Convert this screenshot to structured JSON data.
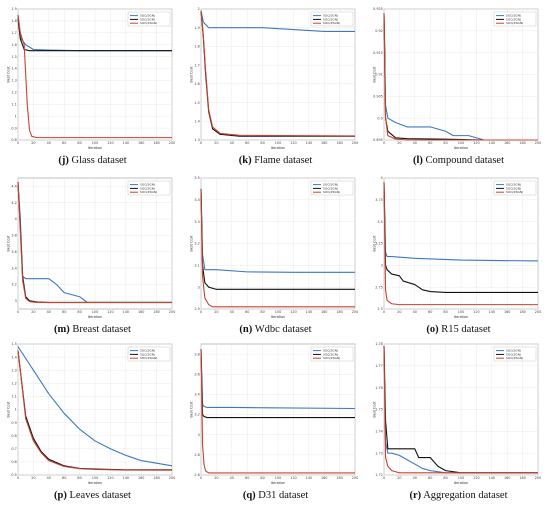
{
  "colors": {
    "series1": "#3a78c4",
    "series2": "#111111",
    "series3": "#c8432d"
  },
  "common": {
    "xlabel": "Iteration",
    "ylabel": "Best Cost",
    "legend": [
      "SOC(SGN)",
      "SOC(SGN)",
      "SOC(ZSGN)"
    ],
    "legend_position": "top-right",
    "grid": true,
    "xticks": [
      0,
      20,
      40,
      60,
      80,
      100,
      120,
      140,
      160,
      180,
      200
    ],
    "xlim": [
      0,
      200
    ]
  },
  "panels": [
    {
      "id": "j",
      "letter": "(j)",
      "title": "Glass dataset"
    },
    {
      "id": "k",
      "letter": "(k)",
      "title": "Flame dataset"
    },
    {
      "id": "l",
      "letter": "(l)",
      "title": "Compound dataset"
    },
    {
      "id": "m",
      "letter": "(m)",
      "title": "Breast dataset"
    },
    {
      "id": "n",
      "letter": "(n)",
      "title": "Wdbc dataset"
    },
    {
      "id": "o",
      "letter": "(o)",
      "title": "R15 dataset"
    },
    {
      "id": "p",
      "letter": "(p)",
      "title": "Leaves dataset"
    },
    {
      "id": "q",
      "letter": "(q)",
      "title": "D31 dataset"
    },
    {
      "id": "r",
      "letter": "(r)",
      "title": "Aggregation dataset"
    }
  ],
  "chart_data": [
    {
      "panel": "j",
      "type": "line",
      "ylim": [
        0.8,
        1.9
      ],
      "yticks": [
        0.8,
        0.9,
        1,
        1.1,
        1.2,
        1.3,
        1.4,
        1.5,
        1.6,
        1.7,
        1.8,
        1.9
      ],
      "series": [
        {
          "color_key": "series1",
          "x": [
            0,
            3,
            10,
            20,
            40,
            80,
            200
          ],
          "y": [
            1.85,
            1.66,
            1.6,
            1.56,
            1.555,
            1.55,
            1.55
          ]
        },
        {
          "color_key": "series2",
          "x": [
            0,
            3,
            8,
            15,
            200
          ],
          "y": [
            1.82,
            1.65,
            1.56,
            1.55,
            1.55
          ]
        },
        {
          "color_key": "series3",
          "x": [
            0,
            3,
            8,
            12,
            15,
            18,
            25,
            200
          ],
          "y": [
            1.85,
            1.7,
            1.6,
            1.1,
            0.88,
            0.83,
            0.82,
            0.82
          ]
        }
      ]
    },
    {
      "panel": "k",
      "type": "line",
      "ylim": [
        1.3,
        2.0
      ],
      "yticks": [
        1.3,
        1.4,
        1.5,
        1.6,
        1.7,
        1.8,
        1.9,
        2.0
      ],
      "series": [
        {
          "color_key": "series1",
          "x": [
            0,
            3,
            10,
            40,
            80,
            120,
            160,
            200
          ],
          "y": [
            1.99,
            1.93,
            1.9,
            1.9,
            1.9,
            1.89,
            1.88,
            1.88
          ]
        },
        {
          "color_key": "series2",
          "x": [
            0,
            3,
            6,
            10,
            15,
            25,
            50,
            200
          ],
          "y": [
            1.99,
            1.85,
            1.65,
            1.45,
            1.36,
            1.33,
            1.32,
            1.32
          ]
        },
        {
          "color_key": "series3",
          "x": [
            0,
            3,
            6,
            10,
            15,
            25,
            50,
            200
          ],
          "y": [
            1.99,
            1.86,
            1.67,
            1.46,
            1.37,
            1.335,
            1.325,
            1.322
          ]
        }
      ]
    },
    {
      "panel": "l",
      "type": "line",
      "ylim": [
        0.895,
        0.925
      ],
      "yticks": [
        0.895,
        0.9,
        0.905,
        0.91,
        0.915,
        0.92,
        0.925
      ],
      "series": [
        {
          "color_key": "series1",
          "x": [
            0,
            1,
            2,
            5,
            15,
            30,
            60,
            80,
            90,
            110,
            130,
            200
          ],
          "y": [
            0.923,
            0.91,
            0.903,
            0.9,
            0.899,
            0.898,
            0.898,
            0.897,
            0.896,
            0.896,
            0.895,
            0.895
          ]
        },
        {
          "color_key": "series2",
          "x": [
            0,
            1,
            2,
            5,
            15,
            30,
            80,
            130,
            200
          ],
          "y": [
            0.924,
            0.915,
            0.9,
            0.897,
            0.8955,
            0.8953,
            0.8952,
            0.895,
            0.895
          ]
        },
        {
          "color_key": "series3",
          "x": [
            0,
            1,
            2,
            5,
            15,
            30,
            200
          ],
          "y": [
            0.924,
            0.913,
            0.9,
            0.896,
            0.8952,
            0.895,
            0.895
          ]
        }
      ]
    },
    {
      "panel": "m",
      "type": "line",
      "ylim": [
        2.9,
        4.5
      ],
      "yticks": [
        3,
        3.2,
        3.4,
        3.6,
        3.8,
        4,
        4.2,
        4.4
      ],
      "series": [
        {
          "color_key": "series1",
          "x": [
            0,
            3,
            6,
            10,
            40,
            50,
            60,
            80,
            90,
            200
          ],
          "y": [
            4.45,
            4.0,
            3.3,
            3.27,
            3.27,
            3.2,
            3.1,
            3.05,
            2.98,
            2.98
          ]
        },
        {
          "color_key": "series2",
          "x": [
            0,
            3,
            6,
            10,
            15,
            25,
            40,
            200
          ],
          "y": [
            4.45,
            3.9,
            3.3,
            3.05,
            3.0,
            2.985,
            2.98,
            2.98
          ]
        },
        {
          "color_key": "series3",
          "x": [
            0,
            3,
            6,
            10,
            15,
            25,
            40,
            200
          ],
          "y": [
            4.45,
            3.85,
            3.25,
            3.03,
            2.99,
            2.98,
            2.978,
            2.978
          ]
        }
      ]
    },
    {
      "panel": "n",
      "type": "line",
      "ylim": [
        2.9,
        3.5
      ],
      "yticks": [
        2.9,
        3.0,
        3.1,
        3.2,
        3.3,
        3.4,
        3.5
      ],
      "series": [
        {
          "color_key": "series1",
          "x": [
            0,
            2,
            5,
            20,
            60,
            120,
            200
          ],
          "y": [
            3.45,
            3.15,
            3.08,
            3.08,
            3.07,
            3.068,
            3.068
          ]
        },
        {
          "color_key": "series2",
          "x": [
            0,
            2,
            5,
            10,
            20,
            200
          ],
          "y": [
            3.45,
            3.1,
            3.02,
            3.0,
            2.99,
            2.99
          ]
        },
        {
          "color_key": "series3",
          "x": [
            0,
            2,
            5,
            10,
            15,
            200
          ],
          "y": [
            3.45,
            3.05,
            2.95,
            2.92,
            2.91,
            2.91
          ]
        }
      ]
    },
    {
      "panel": "o",
      "type": "line",
      "ylim": [
        2.5,
        4.0
      ],
      "yticks": [
        2.5,
        2.75,
        3,
        3.25,
        3.5,
        3.75,
        4
      ],
      "series": [
        {
          "color_key": "series1",
          "x": [
            0,
            2,
            4,
            10,
            40,
            100,
            200
          ],
          "y": [
            3.95,
            3.15,
            3.1,
            3.1,
            3.08,
            3.06,
            3.05
          ]
        },
        {
          "color_key": "series2",
          "x": [
            0,
            2,
            4,
            10,
            20,
            25,
            40,
            50,
            60,
            80,
            200
          ],
          "y": [
            3.95,
            3.0,
            2.95,
            2.9,
            2.88,
            2.82,
            2.78,
            2.72,
            2.7,
            2.69,
            2.69
          ]
        },
        {
          "color_key": "series3",
          "x": [
            0,
            2,
            4,
            10,
            20,
            200
          ],
          "y": [
            3.95,
            2.72,
            2.6,
            2.56,
            2.55,
            2.55
          ]
        }
      ]
    },
    {
      "panel": "p",
      "type": "line",
      "ylim": [
        0.5,
        1.5
      ],
      "yticks": [
        0.5,
        0.6,
        0.7,
        0.8,
        0.9,
        1,
        1.1,
        1.2,
        1.3,
        1.4,
        1.5
      ],
      "series": [
        {
          "color_key": "series1",
          "x": [
            0,
            20,
            40,
            60,
            80,
            100,
            120,
            140,
            160,
            180,
            200
          ],
          "y": [
            1.48,
            1.3,
            1.12,
            0.97,
            0.85,
            0.76,
            0.7,
            0.65,
            0.61,
            0.59,
            0.57
          ]
        },
        {
          "color_key": "series2",
          "x": [
            0,
            10,
            20,
            30,
            40,
            60,
            80,
            100,
            140,
            200
          ],
          "y": [
            1.45,
            0.95,
            0.78,
            0.68,
            0.62,
            0.57,
            0.55,
            0.545,
            0.54,
            0.54
          ]
        },
        {
          "color_key": "series3",
          "x": [
            0,
            10,
            20,
            30,
            40,
            60,
            80,
            100,
            140,
            200
          ],
          "y": [
            1.45,
            0.93,
            0.76,
            0.67,
            0.61,
            0.565,
            0.548,
            0.542,
            0.538,
            0.537
          ]
        }
      ]
    },
    {
      "panel": "q",
      "type": "line",
      "ylim": [
        2.6,
        3.9
      ],
      "yticks": [
        2.6,
        2.8,
        3.0,
        3.2,
        3.4,
        3.6,
        3.8
      ],
      "series": [
        {
          "color_key": "series1",
          "x": [
            0,
            2,
            4,
            8,
            40,
            200
          ],
          "y": [
            3.85,
            3.3,
            3.28,
            3.27,
            3.27,
            3.26
          ]
        },
        {
          "color_key": "series2",
          "x": [
            0,
            2,
            4,
            8,
            200
          ],
          "y": [
            3.85,
            3.2,
            3.18,
            3.17,
            3.17
          ]
        },
        {
          "color_key": "series3",
          "x": [
            0,
            2,
            4,
            6,
            10,
            200
          ],
          "y": [
            3.85,
            2.9,
            2.7,
            2.64,
            2.62,
            2.62
          ]
        }
      ]
    },
    {
      "panel": "r",
      "type": "line",
      "ylim": [
        1.72,
        1.78
      ],
      "yticks": [
        1.72,
        1.73,
        1.74,
        1.75,
        1.76,
        1.77,
        1.78
      ],
      "series": [
        {
          "color_key": "series1",
          "x": [
            0,
            2,
            5,
            10,
            20,
            30,
            40,
            50,
            60,
            80,
            200
          ],
          "y": [
            1.779,
            1.735,
            1.73,
            1.73,
            1.729,
            1.727,
            1.725,
            1.723,
            1.722,
            1.721,
            1.721
          ]
        },
        {
          "color_key": "series2",
          "x": [
            0,
            2,
            5,
            10,
            20,
            40,
            45,
            60,
            70,
            80,
            100,
            200
          ],
          "y": [
            1.779,
            1.745,
            1.732,
            1.732,
            1.732,
            1.732,
            1.728,
            1.728,
            1.724,
            1.722,
            1.721,
            1.721
          ]
        },
        {
          "color_key": "series3",
          "x": [
            0,
            2,
            5,
            10,
            20,
            200
          ],
          "y": [
            1.779,
            1.728,
            1.724,
            1.722,
            1.721,
            1.721
          ]
        }
      ]
    }
  ]
}
